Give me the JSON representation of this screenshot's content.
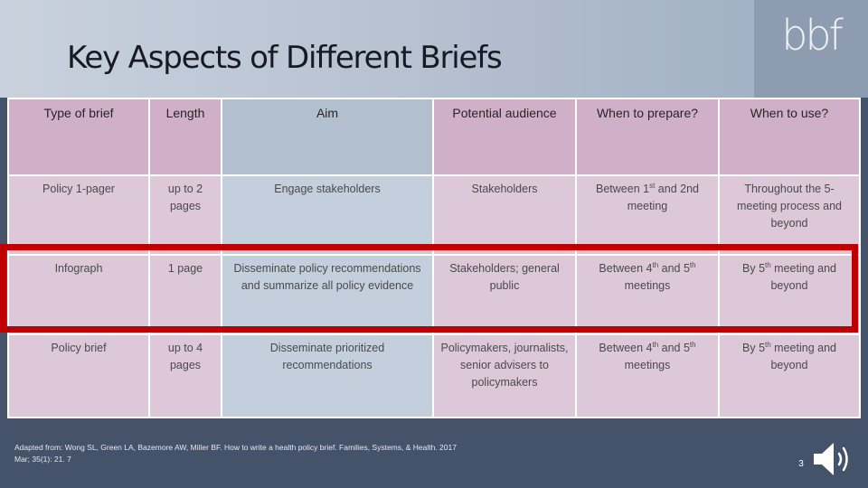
{
  "slide": {
    "title": "Key Aspects of Different Briefs",
    "logo_text": "bbf",
    "source": "Adapted from: Wong SL, Green LA, Bazemore AW, Miller BF. How to write a health policy brief. Families, Systems, & Health. 2017 Mar; 35(1): 21. 7",
    "page_number": "3",
    "speaker_icon": "speaker-icon",
    "highlight_color": "#c00000"
  },
  "table": {
    "headers": [
      "Type of brief",
      "Length",
      "Aim",
      "Potential audience",
      "When to prepare?",
      "When to use?"
    ],
    "rows": {
      "policy_1_pager": {
        "type": "Policy 1-pager",
        "length": "up to 2 pages",
        "aim": "Engage stakeholders",
        "audience": "Stakeholders",
        "prepare": {
          "pre": "Between 1",
          "sup": "st",
          "post": " and 2nd meeting"
        },
        "use": "Throughout the 5-meeting process and beyond"
      },
      "infograph": {
        "type": "Infograph",
        "length": "1 page",
        "aim": "Disseminate policy recommendations and summarize all policy evidence",
        "audience": "Stakeholders; general public",
        "prepare": {
          "pre": "Between 4",
          "sup1": "th",
          "mid": " and 5",
          "sup2": "th",
          "post": " meetings"
        },
        "use": {
          "pre": "By 5",
          "sup": "th",
          "post": " meeting and beyond"
        }
      },
      "policy_brief": {
        "type": "Policy brief",
        "length": "up to 4 pages",
        "aim": "Disseminate prioritized recommendations",
        "audience": "Policymakers, journalists, senior advisers to policymakers",
        "prepare": {
          "pre": "Between 4",
          "sup1": "th",
          "mid": " and 5",
          "sup2": "th",
          "post": " meetings"
        },
        "use": {
          "pre": "By 5",
          "sup": "th",
          "post": " meeting and beyond"
        }
      }
    }
  }
}
